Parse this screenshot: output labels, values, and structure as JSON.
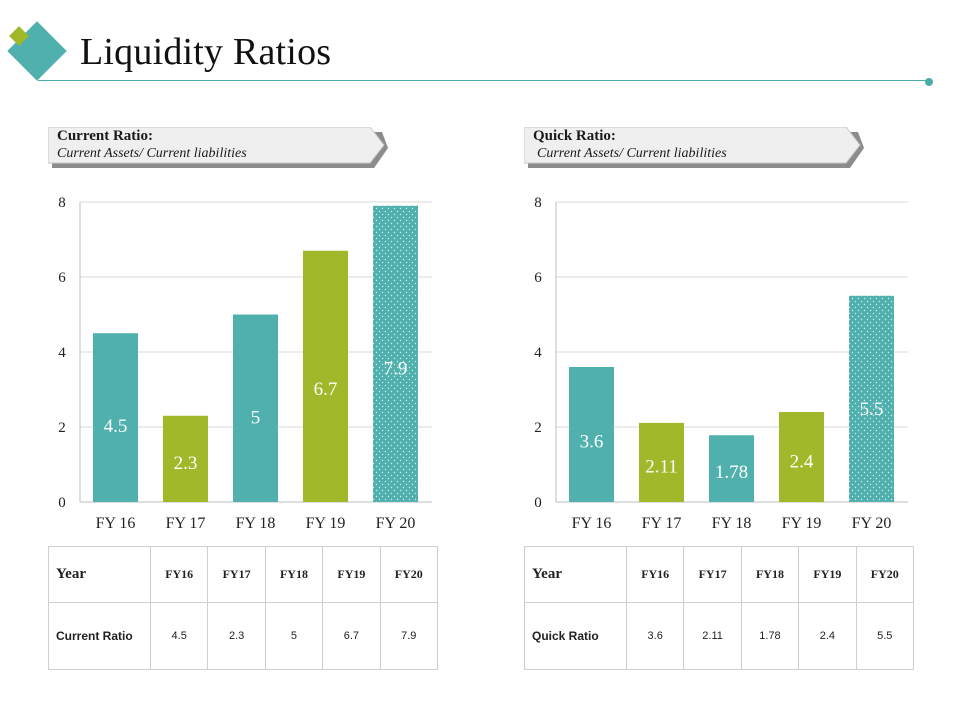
{
  "page": {
    "title": "Liquidity Ratios"
  },
  "colors": {
    "teal": "#4fb0ae",
    "green": "#a0b82a",
    "accent": "#4aacab"
  },
  "left_panel": {
    "banner_title": "Current Ratio:",
    "banner_subtitle": "Current Assets/ Current liabilities",
    "table": {
      "header_label": "Year",
      "headers": [
        "FY16",
        "FY17",
        "FY18",
        "FY19",
        "FY20"
      ],
      "row_label": "Current Ratio",
      "values": [
        "4.5",
        "2.3",
        "5",
        "6.7",
        "7.9"
      ]
    }
  },
  "right_panel": {
    "banner_title": "Quick Ratio:",
    "banner_subtitle": "Current Assets/ Current liabilities",
    "table": {
      "header_label": "Year",
      "headers": [
        "FY16",
        "FY17",
        "FY18",
        "FY19",
        "FY20"
      ],
      "row_label": "Quick  Ratio",
      "values": [
        "3.6",
        "2.11",
        "1.78",
        "2.4",
        "5.5"
      ]
    }
  },
  "chart_data": [
    {
      "type": "bar",
      "title": "Current Ratio",
      "categories": [
        "FY 16",
        "FY 17",
        "FY 18",
        "FY 19",
        "FY 20"
      ],
      "values": [
        4.5,
        2.3,
        5,
        6.7,
        7.9
      ],
      "labels": [
        "4.5",
        "2.3",
        "5",
        "6.7",
        "7.9"
      ],
      "bar_colors": [
        "teal",
        "green",
        "teal",
        "green",
        "teal-dotted"
      ],
      "ylim": [
        0,
        8
      ],
      "yticks": [
        0,
        2,
        4,
        6,
        8
      ],
      "xlabel": "",
      "ylabel": "",
      "grid": true
    },
    {
      "type": "bar",
      "title": "Quick Ratio",
      "categories": [
        "FY 16",
        "FY 17",
        "FY 18",
        "FY 19",
        "FY 20"
      ],
      "values": [
        3.6,
        2.11,
        1.78,
        2.4,
        5.5
      ],
      "labels": [
        "3.6",
        "2.11",
        "1.78",
        "2.4",
        "5.5"
      ],
      "bar_colors": [
        "teal",
        "green",
        "teal",
        "green",
        "teal-dotted"
      ],
      "ylim": [
        0,
        8
      ],
      "yticks": [
        0,
        2,
        4,
        6,
        8
      ],
      "xlabel": "",
      "ylabel": "",
      "grid": true
    }
  ]
}
